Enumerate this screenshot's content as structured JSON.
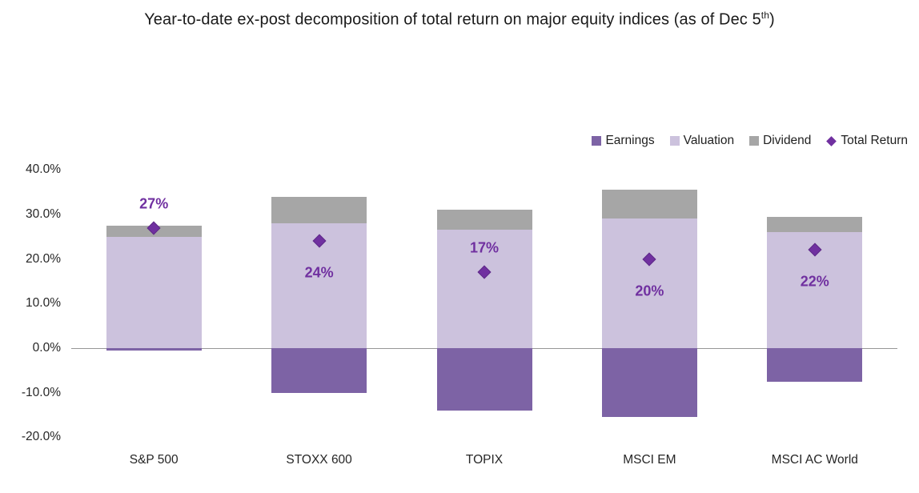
{
  "title": {
    "prefix": "Year-to-date ex-post decomposition of total return on major equity indices (as of Dec 5",
    "superscript": "th",
    "suffix": ")"
  },
  "chart_data": {
    "type": "bar",
    "stacked": true,
    "title": "Year-to-date ex-post decomposition of total return on major equity indices (as of Dec 5th)",
    "xlabel": "",
    "ylabel": "",
    "categories": [
      "S&P 500",
      "STOXX 600",
      "TOPIX",
      "MSCI EM",
      "MSCI AC World"
    ],
    "series": [
      {
        "name": "Earnings",
        "color": "#7D63A5",
        "values": [
          -0.5,
          -10.0,
          -14.0,
          -15.5,
          -7.5
        ]
      },
      {
        "name": "Valuation",
        "color": "#CCC2DD",
        "values": [
          25.0,
          28.0,
          26.5,
          29.0,
          26.0
        ]
      },
      {
        "name": "Dividend",
        "color": "#A6A6A6",
        "values": [
          2.5,
          6.0,
          4.5,
          6.5,
          3.5
        ]
      }
    ],
    "marker_series": {
      "name": "Total Return",
      "color": "#7030A0",
      "border_color": "#5E2A87",
      "values": [
        27,
        24,
        17,
        20,
        22
      ],
      "labels": [
        "27%",
        "24%",
        "17%",
        "20%",
        "22%"
      ],
      "label_positions": [
        "above",
        "below",
        "above",
        "below",
        "below"
      ]
    },
    "y_axis": {
      "tick_labels": [
        "40.0%",
        "30.0%",
        "20.0%",
        "10.0%",
        "0.0%",
        "-10.0%",
        "-20.0%"
      ],
      "tick_values": [
        40,
        30,
        20,
        10,
        0,
        -10,
        -20
      ],
      "min": -20,
      "max": 40
    },
    "legend": [
      "Earnings",
      "Valuation",
      "Dividend",
      "Total Return"
    ],
    "legend_position": "top-right",
    "grid": false,
    "axis_line_color": "#969696",
    "label_color": "#7030A0"
  }
}
